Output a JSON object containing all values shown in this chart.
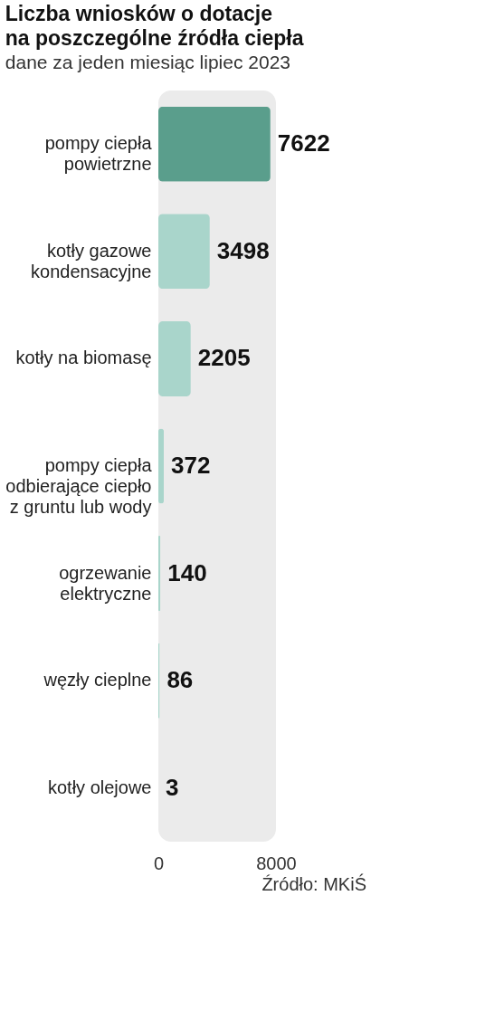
{
  "chart_data": {
    "type": "bar",
    "orientation": "horizontal",
    "title": "Liczba wniosków o dotacje\nna poszczególne źródła ciepła",
    "subtitle": "dane za jeden miesiąc lipiec 2023",
    "categories": [
      "pompy ciepła\npowietrzne",
      "kotły gazowe\nkondensacyjne",
      "kotły na biomasę",
      "pompy ciepła\nodbierające ciepło\nz gruntu lub wody",
      "ogrzewanie\nelektryczne",
      "węzły cieplne",
      "kotły olejowe"
    ],
    "values": [
      7622,
      3498,
      2205,
      372,
      140,
      86,
      3
    ],
    "colors": [
      "#5a9e8c",
      "#a9d5cb",
      "#a9d5cb",
      "#a9d5cb",
      "#a9d5cb",
      "#a9d5cb",
      "#a9d5cb"
    ],
    "xlim": [
      0,
      8000
    ],
    "xticks": [
      0,
      8000
    ],
    "data_labels": true,
    "annotations": [
      "Źródło: MKiŚ"
    ]
  }
}
